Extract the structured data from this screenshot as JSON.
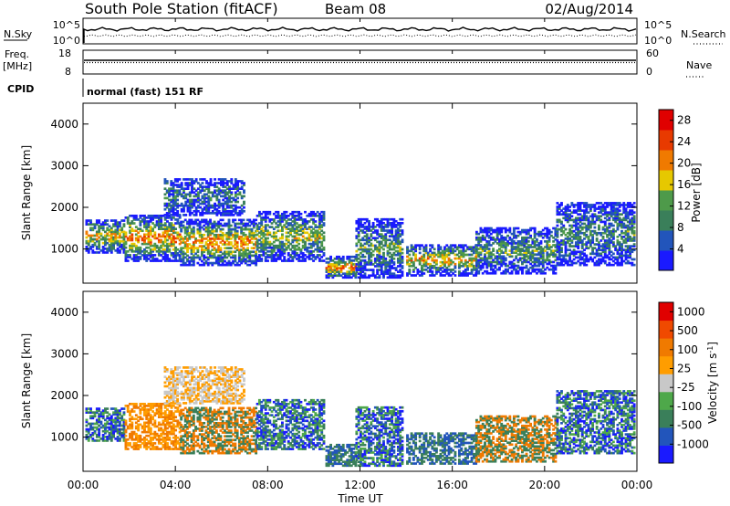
{
  "header": {
    "station": "South Pole Station (fitACF)",
    "beam": "Beam 08",
    "date": "02/Aug/2014"
  },
  "aux_panels": {
    "nsky_label": "N.Sky",
    "nsky_top": "10^5",
    "nsky_bottom": "10^0",
    "nsearch_label": "N.Search",
    "nsearch_top": "10^5",
    "nsearch_bottom": "10^0",
    "freq_label_1": "Freq.",
    "freq_label_2": "[MHz]",
    "freq_top": "18",
    "freq_bottom": "8",
    "nave_label": "Nave",
    "nave_top": "60",
    "nave_bottom": "0",
    "cpid_label": "CPID",
    "cpid_text": "normal (fast) 151 RF"
  },
  "colors": {
    "power_scale": [
      "#1a1aff",
      "#2255bb",
      "#3a7f5a",
      "#4e9a4a",
      "#e6c800",
      "#f07a00",
      "#e83a00",
      "#e00000"
    ],
    "velocity_scale": [
      "#e00000",
      "#f04a00",
      "#f07a00",
      "#ff9d00",
      "#c8c8c8",
      "#4ea84a",
      "#3a7f5a",
      "#2255bb",
      "#1a1aff"
    ]
  },
  "chart_data": [
    {
      "type": "heatmap",
      "name": "power",
      "ylabel": "Slant Range [km]",
      "xlabel": "",
      "xlim": [
        0,
        24
      ],
      "ylim": [
        180,
        4500
      ],
      "y_ticks": [
        "1000",
        "2000",
        "3000",
        "4000"
      ],
      "x_ticks": [
        "00:00",
        "04:00",
        "08:00",
        "12:00",
        "16:00",
        "20:00",
        "00:00"
      ],
      "colorbar_label": "Power [dB]",
      "colorbar_ticks": [
        "4",
        "8",
        "12",
        "16",
        "20",
        "24",
        "28"
      ],
      "colorbar_range": [
        0,
        30
      ]
    },
    {
      "type": "heatmap",
      "name": "velocity",
      "ylabel": "Slant Range [km]",
      "xlabel": "Time UT",
      "xlim": [
        0,
        24
      ],
      "ylim": [
        180,
        4500
      ],
      "y_ticks": [
        "1000",
        "2000",
        "3000",
        "4000"
      ],
      "x_ticks": [
        "00:00",
        "04:00",
        "08:00",
        "12:00",
        "16:00",
        "20:00",
        "00:00"
      ],
      "colorbar_label": "Velocity [m s^-1]",
      "colorbar_ticks": [
        "1000",
        "500",
        "100",
        "25",
        "-25",
        "-100",
        "-500",
        "-1000"
      ]
    }
  ]
}
